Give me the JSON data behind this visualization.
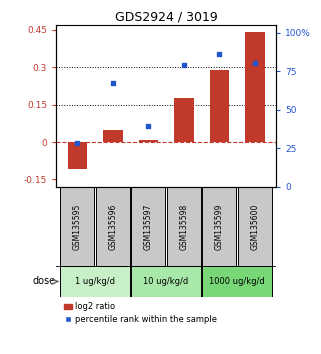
{
  "title": "GDS2924 / 3019",
  "samples": [
    "GSM135595",
    "GSM135596",
    "GSM135597",
    "GSM135598",
    "GSM135599",
    "GSM135600"
  ],
  "log2_ratio": [
    -0.11,
    0.05,
    0.01,
    0.175,
    0.29,
    0.44
  ],
  "percentile_rank": [
    0.285,
    0.67,
    0.395,
    0.79,
    0.86,
    0.805
  ],
  "bar_color": "#c0392b",
  "dot_color": "#2255cc",
  "ylim_left": [
    -0.18,
    0.47
  ],
  "ylim_right": [
    0,
    1.05
  ],
  "yticks_left": [
    -0.15,
    0,
    0.15,
    0.3,
    0.45
  ],
  "yticks_left_labels": [
    "-0.15",
    "0",
    "0.15",
    "0.3",
    "0.45"
  ],
  "yticks_right": [
    0,
    0.25,
    0.5,
    0.75,
    1.0
  ],
  "yticks_right_labels": [
    "0",
    "25",
    "50",
    "75",
    "100%"
  ],
  "hline_y": [
    0.15,
    0.3
  ],
  "zero_line_y": 0,
  "dose_groups": [
    {
      "label": "1 ug/kg/d",
      "indices": [
        0,
        1
      ],
      "color": "#c8f0c8"
    },
    {
      "label": "10 ug/kg/d",
      "indices": [
        2,
        3
      ],
      "color": "#a8e8a8"
    },
    {
      "label": "1000 ug/kg/d",
      "indices": [
        4,
        5
      ],
      "color": "#78d878"
    }
  ],
  "dose_label": "dose",
  "legend_bar_label": "log2 ratio",
  "legend_dot_label": "percentile rank within the sample",
  "background_color": "#ffffff",
  "sample_box_color": "#c8c8c8"
}
